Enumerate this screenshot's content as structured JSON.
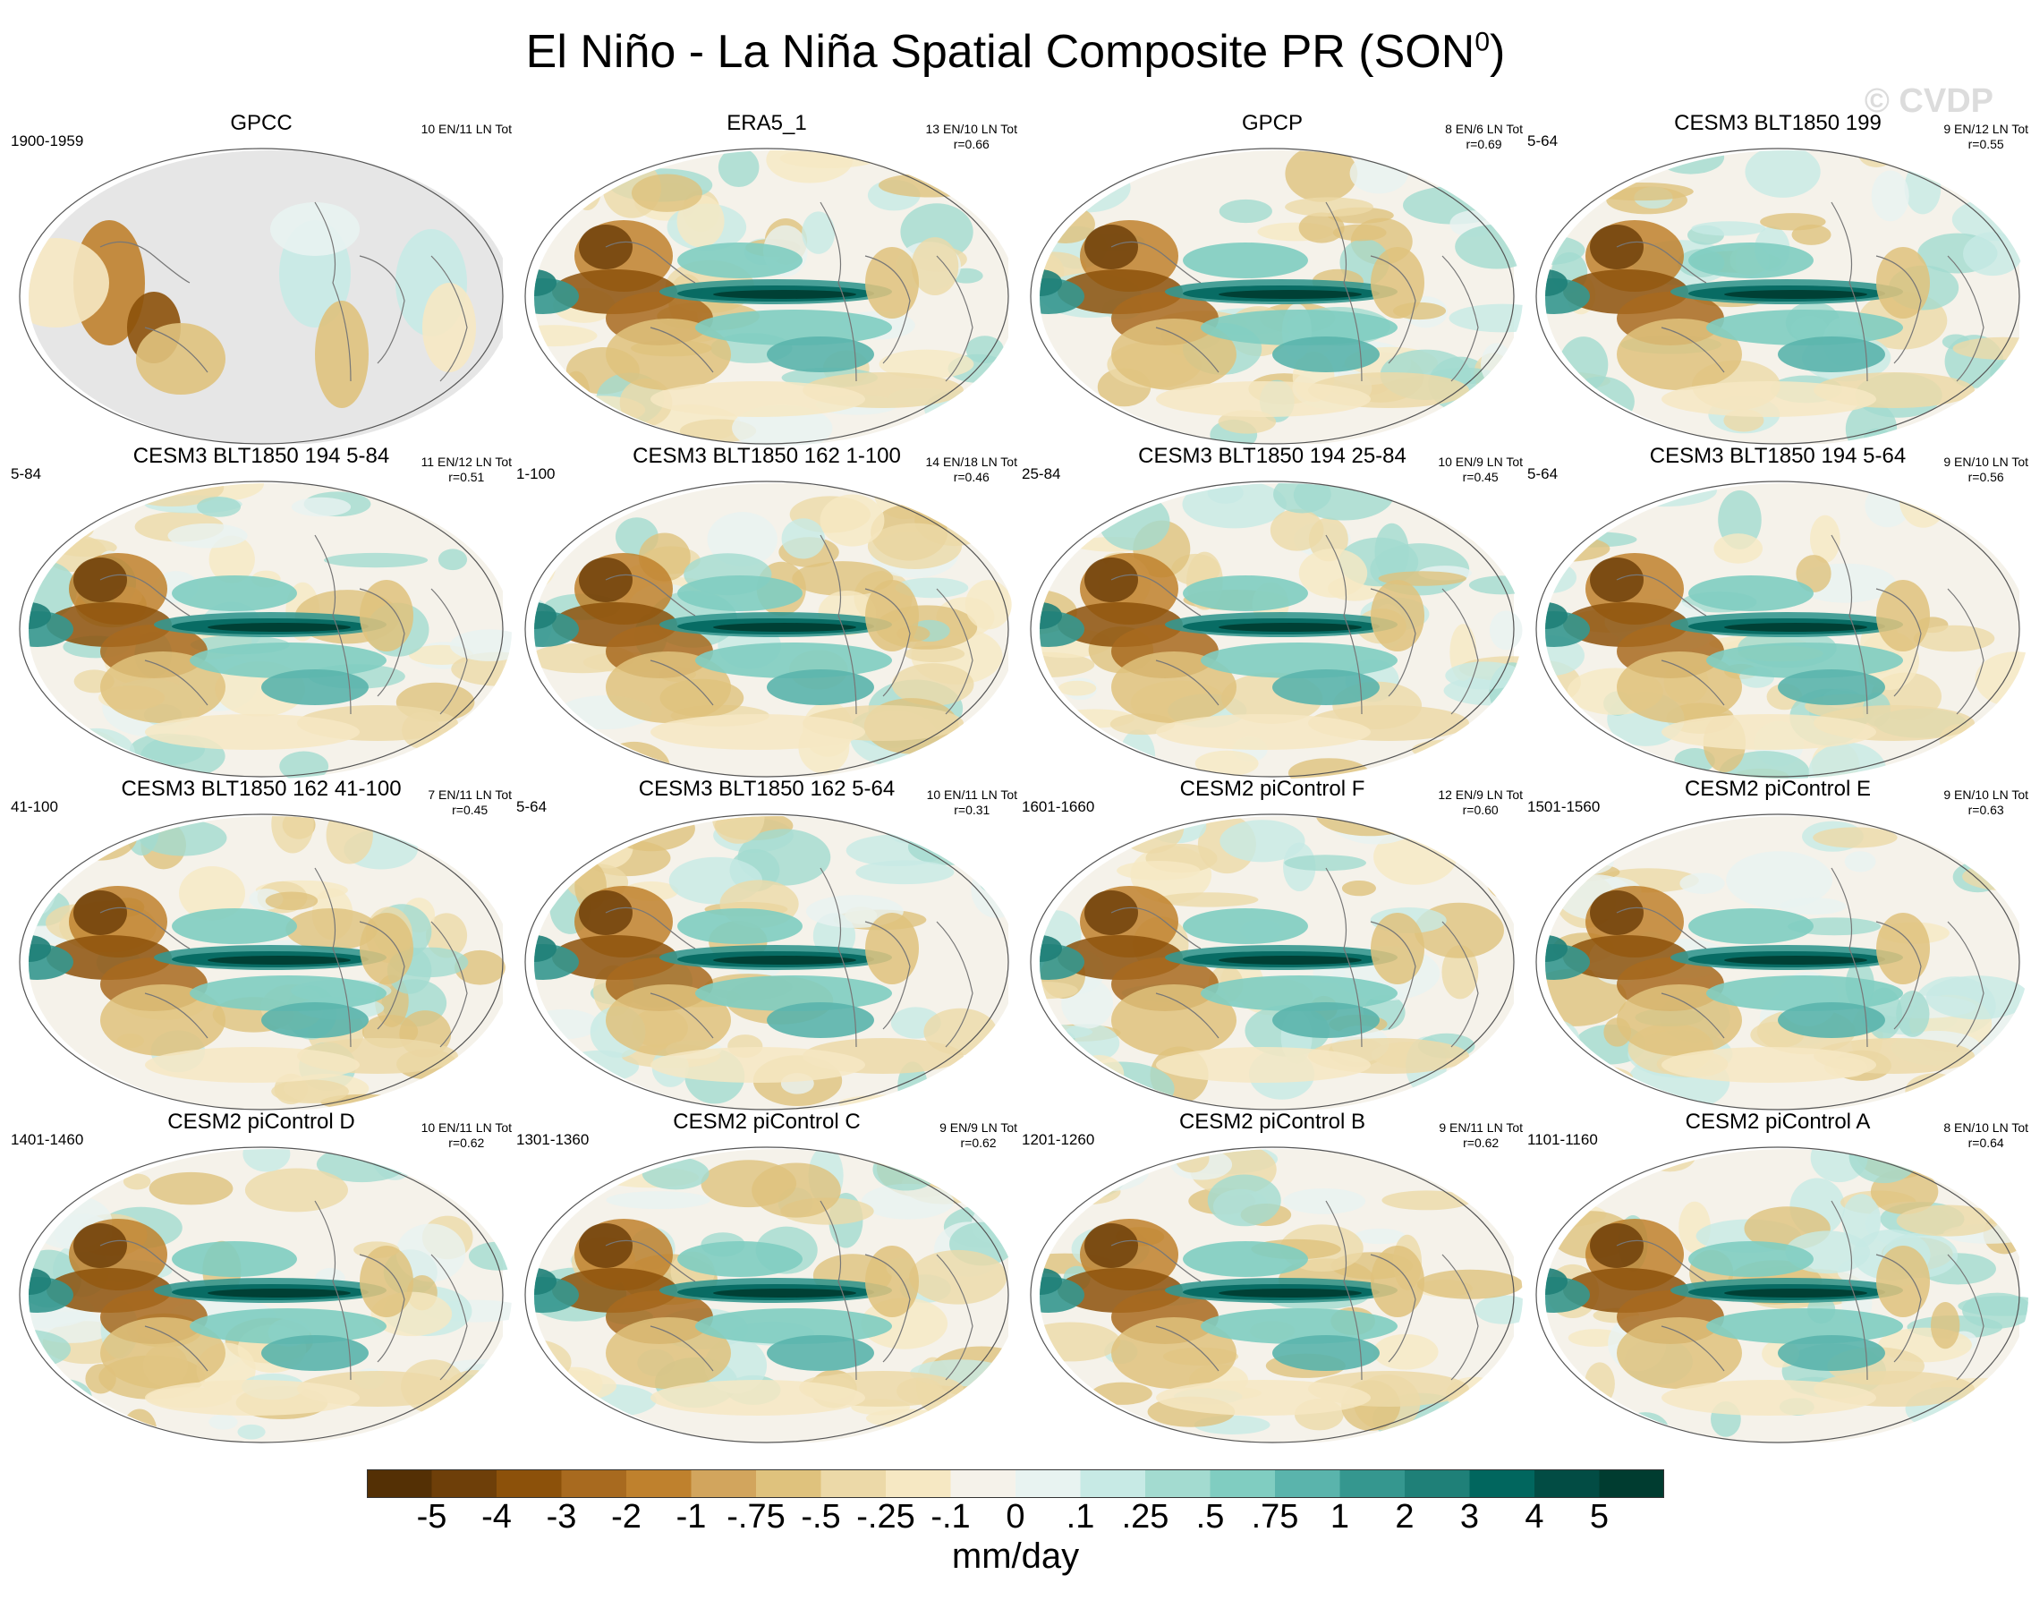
{
  "title": "El Niño - La Niña Spatial Composite PR (SON",
  "title_sup": "0",
  "title_end": ")",
  "watermark": "© CVDP",
  "colorbar": {
    "unit": "mm/day",
    "labels": [
      "-5",
      "-4",
      "-3",
      "-2",
      "-1",
      "-.75",
      "-.5",
      "-.25",
      "-.1",
      "0",
      ".1",
      ".25",
      ".5",
      ".75",
      "1",
      "2",
      "3",
      "4",
      "5"
    ],
    "colors": [
      "#543005",
      "#6e3f09",
      "#8c510a",
      "#a86a1f",
      "#bf812d",
      "#d2a55d",
      "#dfc27d",
      "#ecd9a8",
      "#f6e8c3",
      "#f5f2ea",
      "#e8f3f1",
      "#c7eae5",
      "#a3dbd0",
      "#80cdc1",
      "#5ab4ac",
      "#35978f",
      "#1f8078",
      "#01665e",
      "#024c44",
      "#003c30"
    ]
  },
  "chart_data": [
    {
      "type": "heatmap",
      "title": "GPCC",
      "years": "1900-1959",
      "stats": [
        "10 EN/11 LN Tot"
      ],
      "land_only": true
    },
    {
      "type": "heatmap",
      "title": "ERA5_1",
      "years": "",
      "stats": [
        "13 EN/10 LN Tot",
        "r=0.66"
      ]
    },
    {
      "type": "heatmap",
      "title": "GPCP",
      "years": "",
      "stats": [
        "8 EN/6 LN Tot",
        "r=0.69"
      ]
    },
    {
      "type": "heatmap",
      "title": "CESM3 BLT1850 199",
      "years": "5-64",
      "stats": [
        "9 EN/12 LN Tot",
        "r=0.55"
      ]
    },
    {
      "type": "heatmap",
      "title": "CESM3 BLT1850 194 5-84",
      "years": "5-84",
      "stats": [
        "11 EN/12 LN Tot",
        "r=0.51"
      ]
    },
    {
      "type": "heatmap",
      "title": "CESM3 BLT1850 162 1-100",
      "years": "1-100",
      "stats": [
        "14 EN/18 LN Tot",
        "r=0.46"
      ]
    },
    {
      "type": "heatmap",
      "title": "CESM3 BLT1850 194 25-84",
      "years": "25-84",
      "stats": [
        "10 EN/9 LN Tot",
        "r=0.45"
      ]
    },
    {
      "type": "heatmap",
      "title": "CESM3 BLT1850 194 5-64",
      "years": "5-64",
      "stats": [
        "9 EN/10 LN Tot",
        "r=0.56"
      ]
    },
    {
      "type": "heatmap",
      "title": "CESM3 BLT1850 162 41-100",
      "years": "41-100",
      "stats": [
        "7 EN/11 LN Tot",
        "r=0.45"
      ]
    },
    {
      "type": "heatmap",
      "title": "CESM3 BLT1850 162 5-64",
      "years": "5-64",
      "stats": [
        "10 EN/11 LN Tot",
        "r=0.31"
      ]
    },
    {
      "type": "heatmap",
      "title": "CESM2 piControl F",
      "years": "1601-1660",
      "stats": [
        "12 EN/9 LN Tot",
        "r=0.60"
      ]
    },
    {
      "type": "heatmap",
      "title": "CESM2 piControl E",
      "years": "1501-1560",
      "stats": [
        "9 EN/10 LN Tot",
        "r=0.63"
      ]
    },
    {
      "type": "heatmap",
      "title": "CESM2 piControl D",
      "years": "1401-1460",
      "stats": [
        "10 EN/11 LN Tot",
        "r=0.62"
      ]
    },
    {
      "type": "heatmap",
      "title": "CESM2 piControl C",
      "years": "1301-1360",
      "stats": [
        "9 EN/9 LN Tot",
        "r=0.62"
      ]
    },
    {
      "type": "heatmap",
      "title": "CESM2 piControl B",
      "years": "1201-1260",
      "stats": [
        "9 EN/11 LN Tot",
        "r=0.62"
      ]
    },
    {
      "type": "heatmap",
      "title": "CESM2 piControl A",
      "years": "1101-1160",
      "stats": [
        "8 EN/10 LN Tot",
        "r=0.64"
      ]
    }
  ]
}
